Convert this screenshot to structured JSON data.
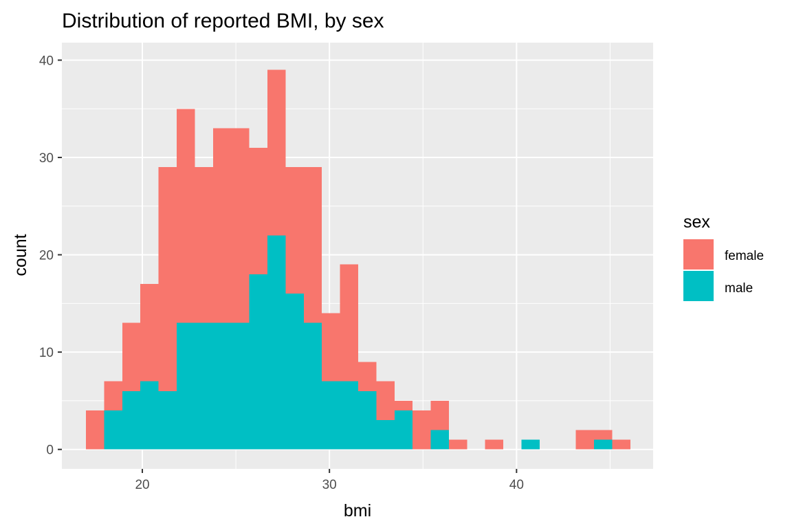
{
  "chart_data": {
    "type": "bar",
    "subtype": "stacked histogram",
    "title": "Distribution of reported BMI, by sex",
    "xlabel": "bmi",
    "ylabel": "count",
    "xlim": [
      15.7,
      47.3
    ],
    "ylim": [
      -2,
      41.8
    ],
    "x_ticks": [
      20,
      30,
      40
    ],
    "y_ticks": [
      0,
      10,
      20,
      30,
      40
    ],
    "grid": true,
    "bin_width": 0.97,
    "bin_centers": [
      17.47,
      18.44,
      19.41,
      20.38,
      21.35,
      22.32,
      23.29,
      24.26,
      25.23,
      26.2,
      27.17,
      28.14,
      29.11,
      30.08,
      31.05,
      32.02,
      32.99,
      33.96,
      34.93,
      35.9,
      36.87,
      37.84,
      38.81,
      39.78,
      40.75,
      41.72,
      42.69,
      43.66,
      44.63,
      45.6
    ],
    "legend": {
      "title": "sex",
      "position": "right"
    },
    "series": [
      {
        "name": "female",
        "color": "#F8766D",
        "values": [
          4,
          3,
          7,
          10,
          23,
          22,
          16,
          20,
          20,
          13,
          17,
          13,
          16,
          7,
          12,
          3,
          4,
          1,
          4,
          3,
          1,
          0,
          1,
          0,
          0,
          0,
          0,
          2,
          1,
          1
        ]
      },
      {
        "name": "male",
        "color": "#00BFC4",
        "values": [
          0,
          4,
          6,
          7,
          6,
          13,
          13,
          13,
          13,
          18,
          22,
          16,
          13,
          7,
          7,
          6,
          3,
          4,
          0,
          2,
          0,
          0,
          0,
          0,
          1,
          0,
          0,
          0,
          1,
          0
        ]
      }
    ],
    "totals": [
      4,
      7,
      13,
      17,
      29,
      35,
      29,
      33,
      33,
      31,
      39,
      29,
      29,
      14,
      19,
      9,
      7,
      5,
      4,
      5,
      1,
      0,
      1,
      0,
      1,
      0,
      0,
      2,
      2,
      1
    ]
  }
}
